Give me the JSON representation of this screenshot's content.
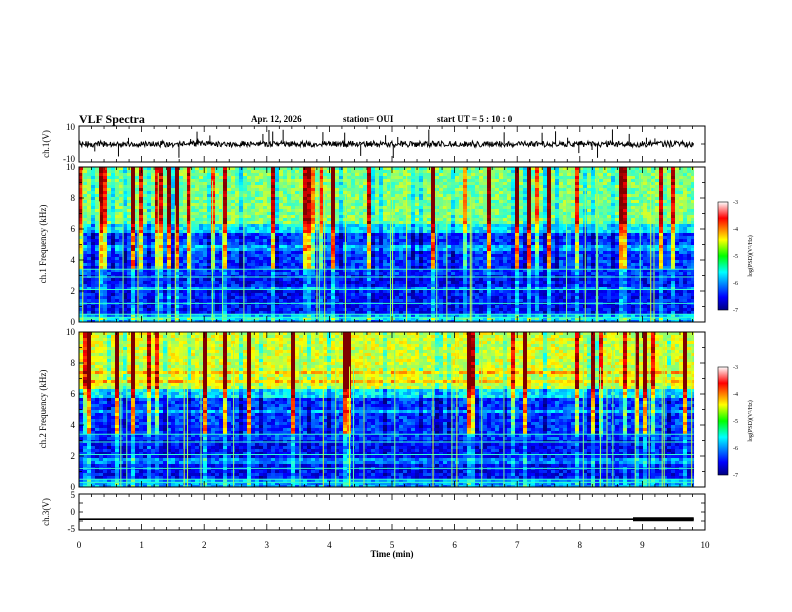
{
  "header": {
    "title": "VLF Spectra",
    "date": "Apr. 12, 2026",
    "station": "station= OUI",
    "start": "start  UT  =   5  : 10 : 0"
  },
  "chart_data": [
    {
      "type": "line",
      "panel": "ch1-waveform",
      "ylabel": "ch.1(V)",
      "ylim": [
        -10,
        10
      ],
      "yticks": [
        "10",
        "-10"
      ],
      "baseline": 0,
      "noise": "high-amplitude noise with impulsive spikes"
    },
    {
      "type": "heatmap",
      "panel": "ch1-spectrogram",
      "ylabel": "ch.1\nFrequency (kHz)",
      "ylim": [
        0,
        10
      ],
      "yticks": [
        "0",
        "2",
        "4",
        "6",
        "8",
        "10"
      ],
      "colorbar": {
        "label": "log(PSD)(V²/Hz)",
        "range": [
          -7,
          -3
        ],
        "ticks": [
          "-3",
          "-4",
          "-5",
          "-6",
          "-7"
        ]
      }
    },
    {
      "type": "heatmap",
      "panel": "ch2-spectrogram",
      "ylabel": "ch.2\nFrequency (kHz)",
      "ylim": [
        0,
        10
      ],
      "yticks": [
        "0",
        "2",
        "4",
        "6",
        "8",
        "10"
      ],
      "colorbar": {
        "label": "log(PSD)(V²/Hz)",
        "range": [
          -7,
          -3
        ],
        "ticks": [
          "-3",
          "-4",
          "-5",
          "-6",
          "-7"
        ]
      }
    },
    {
      "type": "line",
      "panel": "ch3-waveform",
      "ylabel": "ch.3(V)",
      "ylim": [
        -5,
        5
      ],
      "yticks": [
        "5",
        "0",
        "-5"
      ],
      "baseline": -2,
      "thick_segment_from": 8.85,
      "xlabel": "Time (min)",
      "xlim": [
        0,
        10
      ],
      "xticks": [
        "0",
        "1",
        "2",
        "3",
        "4",
        "5",
        "6",
        "7",
        "8",
        "9",
        "10"
      ],
      "data_end": 9.82
    }
  ],
  "icons": {
    "colormap": "jet"
  }
}
